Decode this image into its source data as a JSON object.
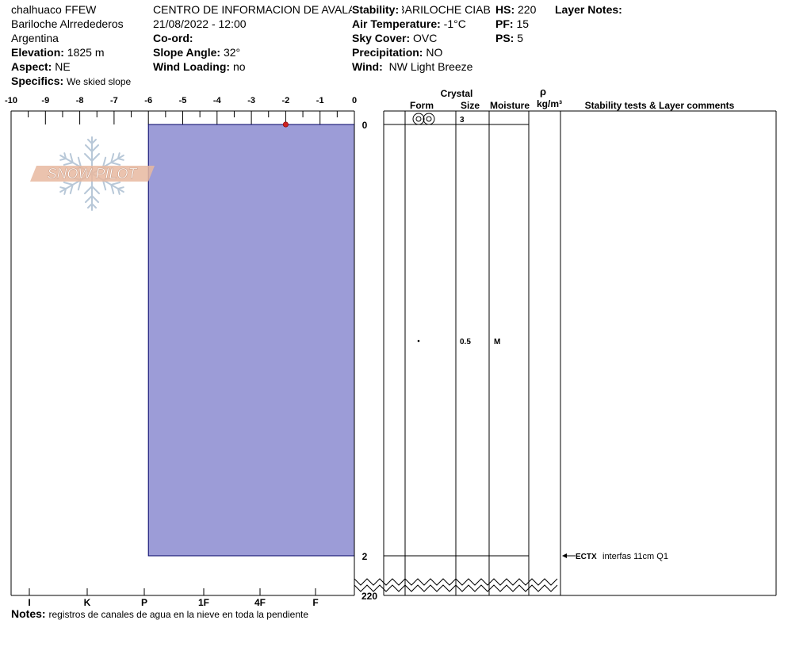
{
  "site": {
    "name": "chalhuaco FFEW",
    "area": "Bariloche Alrredederos",
    "country": "Argentina",
    "elevation_label": "Elevation:",
    "elevation": "1825 m",
    "aspect_label": "Aspect:",
    "aspect": "NE",
    "specifics_label": "Specifics:",
    "specifics": "We skied slope"
  },
  "obs": {
    "organization": "CENTRO DE INFORMACION DE AVALANCHAS BARILOCHE CIAB",
    "datetime": "21/08/2022 - 12:00",
    "coord_label": "Co-ord:",
    "slope_label": "Slope Angle:",
    "slope": "32°",
    "wind_loading_label": "Wind Loading:",
    "wind_loading": "no"
  },
  "weather": {
    "stability_label": "Stability:",
    "air_temp_label": "Air Temperature:",
    "air_temp": "-1°C",
    "sky_label": "Sky Cover:",
    "sky": "OVC",
    "precip_label": "Precipitation:",
    "precip": "NO",
    "wind_label": "Wind:",
    "wind": "NW Light Breeze"
  },
  "depths": {
    "hs_label": "HS:",
    "hs": "220",
    "pf_label": "PF:",
    "pf": "15",
    "ps_label": "PS:",
    "ps": "5"
  },
  "layer_notes_label": "Layer Notes:",
  "logo_text": "SNOW PILOT",
  "table": {
    "crystal": "Crystal",
    "form": "Form",
    "size": "Size",
    "moisture": "Moisture",
    "rho": "ρ",
    "density_unit": "kg/m³",
    "stability": "Stability tests & Layer comments"
  },
  "notes_label": "Notes:",
  "notes": "registros de canales de agua en la nieve en toda la pendiente",
  "chart_data": {
    "type": "snow_profile",
    "temperature_axis": {
      "ticks": [
        -10,
        -9,
        -8,
        -7,
        -6,
        -5,
        -4,
        -3,
        -2,
        -1,
        0
      ],
      "labels": [
        "-10",
        "-9",
        "-8",
        "-7",
        "-6",
        "-5",
        "-4",
        "-3",
        "-2",
        "-1",
        "0"
      ]
    },
    "hardness_axis": {
      "labels": [
        "I",
        "K",
        "P",
        "1F",
        "4F",
        "F"
      ]
    },
    "depth_labels": [
      "0",
      "2",
      "220"
    ],
    "layers": [
      {
        "top": 0,
        "bottom": 2,
        "hardness_left_temp": -6,
        "color": "#9c9cd7"
      }
    ],
    "temperature_points": [
      {
        "depth": 0,
        "temp": -2
      }
    ],
    "crystals": [
      {
        "depth": 0,
        "form": "melt-forms-icon",
        "size": "3",
        "moisture": ""
      },
      {
        "depth": 1,
        "form": "precipitation-particles-icon",
        "size": "0.5",
        "moisture": "M"
      }
    ],
    "tests": [
      {
        "depth": 2,
        "code": "ECTX",
        "comment": "interfas 11cm Q1"
      }
    ],
    "colors": {
      "layer": "#9c9cd7",
      "temperature": "#cc2222",
      "logo": "#e8b8a0"
    }
  }
}
